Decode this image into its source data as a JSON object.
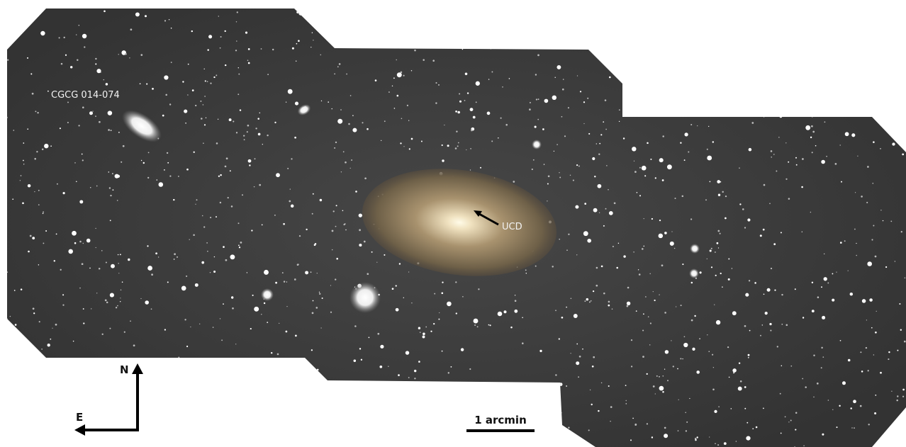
{
  "labels": {
    "galaxy": "CGCG 014-074",
    "ucd": "UCD",
    "north": "N",
    "east": "E",
    "scale": "1 arcmin"
  }
}
